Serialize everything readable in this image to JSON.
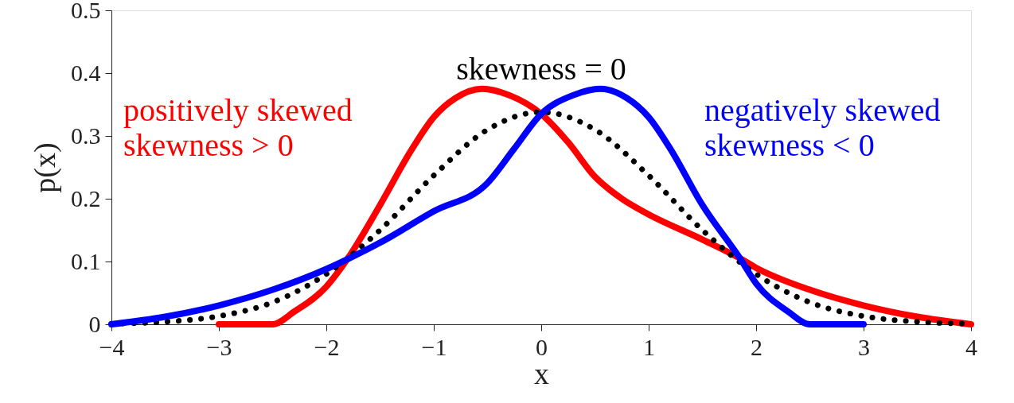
{
  "chart_data": {
    "type": "line",
    "xlabel": "x",
    "ylabel": "p(x)",
    "xlim": [
      -4,
      4
    ],
    "ylim": [
      0,
      0.5
    ],
    "xticks": [
      {
        "value": -4,
        "label": "−4"
      },
      {
        "value": -3,
        "label": "−3"
      },
      {
        "value": -2,
        "label": "−2"
      },
      {
        "value": -1,
        "label": "−1"
      },
      0,
      1,
      2,
      3,
      4
    ],
    "yticks": [
      0,
      0.1,
      0.2,
      0.3,
      0.4,
      0.5
    ],
    "grid": false,
    "marker": "none",
    "series": [
      {
        "name": "positively skewed\nskewness > 0",
        "color": "#ff0000",
        "line_style": "solid",
        "x": [
          -3,
          -2.5,
          -2.3,
          -2,
          -1.8,
          -1.5,
          -1.2,
          -1,
          -0.8,
          -0.55,
          -0.3,
          0,
          0.25,
          0.5,
          0.75,
          1,
          1.5,
          1.85,
          2,
          2.5,
          3,
          3.5,
          4
        ],
        "values": [
          0,
          0,
          0.02,
          0.06,
          0.105,
          0.19,
          0.28,
          0.33,
          0.36,
          0.375,
          0.365,
          0.335,
          0.29,
          0.235,
          0.2,
          0.175,
          0.135,
          0.105,
          0.09,
          0.055,
          0.03,
          0.012,
          0
        ]
      },
      {
        "name": "skewness = 0",
        "color": "#000000",
        "line_style": "dotted",
        "x": [
          -4,
          -3.5,
          -3,
          -2.5,
          -2,
          -1.5,
          -1,
          -0.5,
          0,
          0.5,
          1,
          1.5,
          2,
          2.5,
          3,
          3.5,
          4
        ],
        "values": [
          0.001,
          0.004,
          0.013,
          0.035,
          0.08,
          0.15,
          0.237,
          0.31,
          0.338,
          0.31,
          0.237,
          0.15,
          0.08,
          0.035,
          0.013,
          0.004,
          0.001
        ]
      },
      {
        "name": "negatively skewed\nskewness < 0",
        "color": "#0000ff",
        "line_style": "solid",
        "x": [
          -4,
          -3.5,
          -3,
          -2.5,
          -2,
          -1.8,
          -1.5,
          -1,
          -0.5,
          -0.25,
          0,
          0.3,
          0.55,
          0.8,
          1,
          1.2,
          1.5,
          1.85,
          2,
          2.3,
          2.5,
          3
        ],
        "values": [
          0,
          0.012,
          0.03,
          0.055,
          0.088,
          0.104,
          0.13,
          0.18,
          0.225,
          0.28,
          0.335,
          0.365,
          0.375,
          0.36,
          0.33,
          0.28,
          0.19,
          0.105,
          0.065,
          0.02,
          0,
          0
        ]
      }
    ]
  }
}
